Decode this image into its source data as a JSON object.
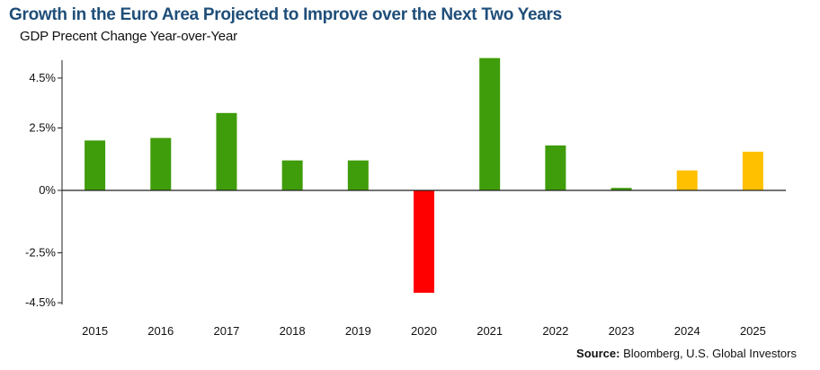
{
  "title": "Growth in the Euro Area Projected to Improve over the Next Two Years",
  "subtitle": "GDP Precent Change Year-over-Year",
  "source": {
    "label": "Source:",
    "text": "Bloomberg, U.S. Global Investors"
  },
  "colors": {
    "actual": "#3f9c0a",
    "negative": "#ff0000",
    "projected": "#ffc000",
    "title": "#1f4e79"
  },
  "chart_data": {
    "type": "bar",
    "title": "Growth in the Euro Area Projected to Improve over the Next Two Years",
    "subtitle": "GDP Precent Change Year-over-Year",
    "xlabel": "",
    "ylabel": "",
    "ylim": [
      -4.5,
      5.0
    ],
    "yticks": [
      4.5,
      2.5,
      0,
      -2.5,
      -4.5
    ],
    "ytick_labels": [
      "4.5%",
      "2.5%",
      "0%",
      "-2.5%",
      "-4.5%"
    ],
    "grid": false,
    "legend": "none",
    "categories": [
      "2015",
      "2016",
      "2017",
      "2018",
      "2019",
      "2020",
      "2021",
      "2022",
      "2023",
      "2024",
      "2025"
    ],
    "values": [
      2.0,
      2.1,
      3.1,
      1.2,
      1.2,
      -4.1,
      5.3,
      1.8,
      0.1,
      0.8,
      1.55
    ],
    "bar_colors": [
      "#3f9c0a",
      "#3f9c0a",
      "#3f9c0a",
      "#3f9c0a",
      "#3f9c0a",
      "#ff0000",
      "#3f9c0a",
      "#3f9c0a",
      "#3f9c0a",
      "#ffc000",
      "#ffc000"
    ]
  }
}
